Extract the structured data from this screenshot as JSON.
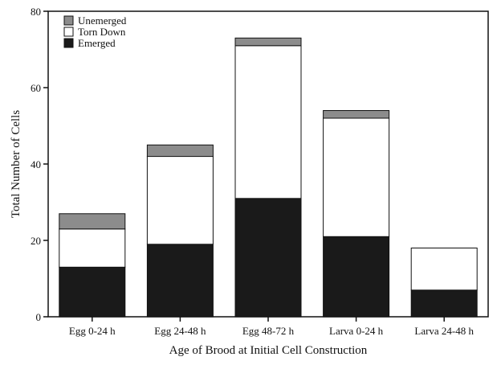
{
  "chart_data": {
    "type": "bar",
    "stacked": true,
    "xlabel": "Age of Brood at Initial Cell Construction",
    "ylabel": "Total Number of Cells",
    "ylim": [
      0,
      80
    ],
    "yticks": [
      0,
      20,
      40,
      60,
      80
    ],
    "grid": false,
    "legend_position": "top-left",
    "categories": [
      "Egg 0-24 h",
      "Egg 24-48 h",
      "Egg 48-72 h",
      "Larva 0-24 h",
      "Larva 24-48 h"
    ],
    "series": [
      {
        "name": "Emerged",
        "color": "#1a1a1a",
        "values": [
          13,
          19,
          31,
          21,
          7
        ]
      },
      {
        "name": "Torn Down",
        "color": "#ffffff",
        "values": [
          10,
          23,
          40,
          31,
          11
        ]
      },
      {
        "name": "Unemerged",
        "color": "#8c8c8c",
        "values": [
          4,
          3,
          2,
          2,
          0
        ]
      }
    ],
    "legend_order": [
      "Unemerged",
      "Torn Down",
      "Emerged"
    ]
  }
}
